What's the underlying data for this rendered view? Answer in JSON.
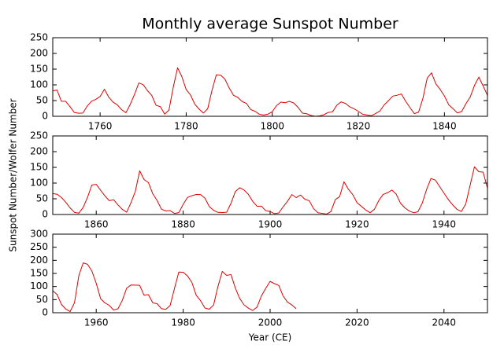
{
  "title": "Monthly average Sunspot Number",
  "y_label": "Sunspot Number/Wolfer Number",
  "x_label": "Year (CE)",
  "chart_data": [
    {
      "type": "line",
      "color": "#e00000",
      "xlim": [
        1749,
        1850
      ],
      "ylim": [
        0,
        250
      ],
      "xticks": [
        1760,
        1780,
        1800,
        1820,
        1840
      ],
      "yticks": [
        0,
        50,
        100,
        150,
        200,
        250
      ],
      "x": [
        1749,
        1750,
        1751,
        1752,
        1753,
        1754,
        1755,
        1756,
        1757,
        1758,
        1759,
        1760,
        1761,
        1762,
        1763,
        1764,
        1765,
        1766,
        1767,
        1768,
        1769,
        1770,
        1771,
        1772,
        1773,
        1774,
        1775,
        1776,
        1777,
        1778,
        1779,
        1780,
        1781,
        1782,
        1783,
        1784,
        1785,
        1786,
        1787,
        1788,
        1789,
        1790,
        1791,
        1792,
        1793,
        1794,
        1795,
        1796,
        1797,
        1798,
        1799,
        1800,
        1801,
        1802,
        1803,
        1804,
        1805,
        1806,
        1807,
        1808,
        1809,
        1810,
        1811,
        1812,
        1813,
        1814,
        1815,
        1816,
        1817,
        1818,
        1819,
        1820,
        1821,
        1822,
        1823,
        1824,
        1825,
        1826,
        1827,
        1828,
        1829,
        1830,
        1831,
        1832,
        1833,
        1834,
        1835,
        1836,
        1837,
        1838,
        1839,
        1840,
        1841,
        1842,
        1843,
        1844,
        1845,
        1846,
        1847,
        1848,
        1849,
        1850
      ],
      "values": [
        80.9,
        83.4,
        47.7,
        47.8,
        30.7,
        12.2,
        9.6,
        10.2,
        32.4,
        47.6,
        54.0,
        62.9,
        85.9,
        61.2,
        45.1,
        36.4,
        20.9,
        11.4,
        37.8,
        69.8,
        106.1,
        100.8,
        81.6,
        66.5,
        34.8,
        30.6,
        7.0,
        19.8,
        92.5,
        154.4,
        125.9,
        84.8,
        68.1,
        38.5,
        22.8,
        10.2,
        24.1,
        82.9,
        132.0,
        130.9,
        118.1,
        89.9,
        66.6,
        60.0,
        46.9,
        41.0,
        21.3,
        16.0,
        6.4,
        4.1,
        6.8,
        14.5,
        34.0,
        45.0,
        43.1,
        47.5,
        42.2,
        28.1,
        10.1,
        8.1,
        2.5,
        0.0,
        1.4,
        5.0,
        12.2,
        13.9,
        35.4,
        45.8,
        41.0,
        30.1,
        23.9,
        15.6,
        6.6,
        4.0,
        1.8,
        8.5,
        16.6,
        36.3,
        49.6,
        64.2,
        67.0,
        70.9,
        47.8,
        27.5,
        8.5,
        13.2,
        56.9,
        121.5,
        138.3,
        103.2,
        85.7,
        64.6,
        36.7,
        24.2,
        10.7,
        15.0,
        40.1,
        61.5,
        98.5,
        124.7,
        96.3,
        66.6
      ]
    },
    {
      "type": "line",
      "color": "#e00000",
      "xlim": [
        1850,
        1950
      ],
      "ylim": [
        0,
        250
      ],
      "xticks": [
        1860,
        1880,
        1900,
        1920,
        1940
      ],
      "yticks": [
        0,
        50,
        100,
        150,
        200,
        250
      ],
      "x": [
        1850,
        1851,
        1852,
        1853,
        1854,
        1855,
        1856,
        1857,
        1858,
        1859,
        1860,
        1861,
        1862,
        1863,
        1864,
        1865,
        1866,
        1867,
        1868,
        1869,
        1870,
        1871,
        1872,
        1873,
        1874,
        1875,
        1876,
        1877,
        1878,
        1879,
        1880,
        1881,
        1882,
        1883,
        1884,
        1885,
        1886,
        1887,
        1888,
        1889,
        1890,
        1891,
        1892,
        1893,
        1894,
        1895,
        1896,
        1897,
        1898,
        1899,
        1900,
        1901,
        1902,
        1903,
        1904,
        1905,
        1906,
        1907,
        1908,
        1909,
        1910,
        1911,
        1912,
        1913,
        1914,
        1915,
        1916,
        1917,
        1918,
        1919,
        1920,
        1921,
        1922,
        1923,
        1924,
        1925,
        1926,
        1927,
        1928,
        1929,
        1930,
        1931,
        1932,
        1933,
        1934,
        1935,
        1936,
        1937,
        1938,
        1939,
        1940,
        1941,
        1942,
        1943,
        1944,
        1945,
        1946,
        1947,
        1948,
        1949,
        1950
      ],
      "values": [
        66.6,
        64.5,
        54.1,
        39.0,
        20.6,
        6.7,
        4.3,
        22.7,
        54.8,
        93.8,
        95.8,
        77.2,
        59.1,
        44.0,
        47.0,
        30.5,
        16.3,
        7.3,
        37.6,
        74.0,
        139.0,
        111.2,
        101.6,
        66.2,
        44.7,
        17.0,
        11.3,
        12.4,
        3.4,
        6.0,
        32.3,
        54.3,
        59.7,
        63.7,
        63.5,
        52.2,
        25.4,
        13.1,
        6.8,
        6.3,
        7.1,
        35.6,
        73.0,
        85.1,
        78.0,
        64.0,
        41.8,
        26.2,
        26.7,
        12.1,
        9.5,
        2.7,
        5.0,
        24.4,
        42.0,
        63.5,
        53.8,
        62.0,
        48.5,
        43.9,
        18.6,
        5.7,
        3.6,
        1.4,
        9.6,
        47.4,
        57.1,
        103.9,
        80.6,
        63.6,
        37.6,
        26.1,
        14.2,
        5.8,
        16.7,
        44.3,
        63.9,
        69.0,
        77.8,
        64.9,
        35.7,
        21.2,
        11.1,
        5.7,
        8.7,
        36.1,
        79.7,
        114.4,
        109.6,
        88.8,
        67.8,
        47.5,
        30.6,
        16.3,
        9.6,
        33.2,
        92.6,
        151.6,
        136.3,
        134.7,
        83.9
      ]
    },
    {
      "type": "line",
      "color": "#e00000",
      "xlim": [
        1950,
        2050
      ],
      "ylim": [
        0,
        300
      ],
      "xticks": [
        1960,
        1980,
        2000,
        2020,
        2040
      ],
      "yticks": [
        0,
        50,
        100,
        150,
        200,
        250,
        300
      ],
      "x": [
        1950,
        1951,
        1952,
        1953,
        1954,
        1955,
        1956,
        1957,
        1958,
        1959,
        1960,
        1961,
        1962,
        1963,
        1964,
        1965,
        1966,
        1967,
        1968,
        1969,
        1970,
        1971,
        1972,
        1973,
        1974,
        1975,
        1976,
        1977,
        1978,
        1979,
        1980,
        1981,
        1982,
        1983,
        1984,
        1985,
        1986,
        1987,
        1988,
        1989,
        1990,
        1991,
        1992,
        1993,
        1994,
        1995,
        1996,
        1997,
        1998,
        1999,
        2000,
        2001,
        2002,
        2003,
        2004,
        2005,
        2006
      ],
      "values": [
        83.9,
        69.4,
        31.5,
        13.9,
        4.4,
        38.0,
        141.7,
        190.2,
        184.8,
        159.0,
        112.3,
        53.9,
        37.5,
        27.9,
        10.2,
        15.1,
        47.0,
        93.8,
        105.9,
        105.5,
        104.5,
        66.6,
        68.9,
        38.0,
        34.5,
        15.5,
        12.6,
        27.5,
        92.5,
        155.4,
        154.6,
        140.4,
        115.9,
        66.6,
        45.9,
        17.9,
        13.4,
        29.4,
        100.2,
        157.6,
        142.6,
        145.7,
        94.3,
        54.6,
        29.9,
        17.5,
        8.6,
        21.5,
        64.3,
        93.3,
        119.6,
        111.0,
        104.0,
        63.7,
        40.4,
        29.8,
        15.2
      ]
    }
  ]
}
